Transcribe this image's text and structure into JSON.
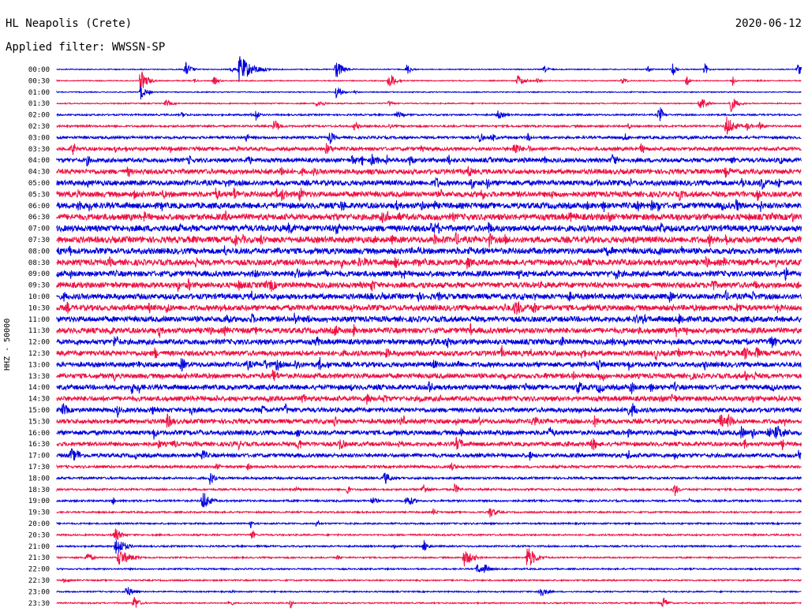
{
  "header": {
    "station": "HL Neapolis (Crete)",
    "filter": "Applied filter: WWSSN-SP",
    "date": "2020-06-12",
    "channel_label": "HHZ - 50000"
  },
  "chart_data": {
    "type": "line",
    "title": "HL Neapolis (Crete)",
    "subtitle": "Applied filter: WWSSN-SP",
    "date": "2020-06-12",
    "ylabel": "HHZ - 50000",
    "row_labels": [
      "00:00",
      "00:30",
      "01:00",
      "01:30",
      "02:00",
      "02:30",
      "03:00",
      "03:30",
      "04:00",
      "04:30",
      "05:00",
      "05:30",
      "06:00",
      "06:30",
      "07:00",
      "07:30",
      "08:00",
      "08:30",
      "09:00",
      "09:30",
      "10:00",
      "10:30",
      "11:00",
      "11:30",
      "12:00",
      "12:30",
      "13:00",
      "13:30",
      "14:00",
      "14:30",
      "15:00",
      "15:30",
      "16:00",
      "16:30",
      "17:00",
      "17:30",
      "18:00",
      "18:30",
      "19:00",
      "19:30",
      "20:00",
      "20:30",
      "21:00",
      "21:30",
      "22:00",
      "22:30",
      "23:00",
      "23:30"
    ],
    "row_colors": [
      "#0000dd",
      "#ee1144"
    ],
    "row_noise": [
      0.6,
      0.6,
      0.6,
      0.7,
      1.0,
      1.2,
      1.6,
      2.2,
      2.6,
      3.0,
      3.2,
      3.4,
      3.6,
      3.8,
      3.8,
      3.8,
      3.6,
      3.6,
      3.4,
      3.4,
      3.4,
      3.4,
      3.4,
      3.4,
      3.2,
      3.2,
      3.0,
      3.0,
      3.0,
      3.0,
      2.8,
      2.8,
      2.8,
      2.6,
      2.4,
      1.6,
      1.4,
      1.2,
      1.2,
      1.0,
      1.0,
      1.0,
      1.0,
      0.9,
      0.9,
      0.9,
      0.8,
      0.8
    ],
    "row_events": [
      8,
      8,
      2,
      3,
      8,
      6,
      10,
      16,
      18,
      20,
      20,
      22,
      24,
      24,
      26,
      26,
      24,
      24,
      22,
      22,
      22,
      22,
      22,
      22,
      20,
      20,
      20,
      20,
      20,
      20,
      18,
      18,
      18,
      18,
      16,
      4,
      3,
      4,
      3,
      2,
      2,
      2,
      2,
      2,
      2,
      2,
      2,
      2
    ],
    "events": [
      {
        "row": 0,
        "x": 303,
        "amp": 18,
        "w": 16
      },
      {
        "row": 0,
        "x": 425,
        "amp": 14,
        "w": 8
      },
      {
        "row": 1,
        "x": 178,
        "amp": 14,
        "w": 8
      },
      {
        "row": 1,
        "x": 656,
        "amp": 8,
        "w": 8
      },
      {
        "row": 2,
        "x": 178,
        "amp": 10,
        "w": 6
      },
      {
        "row": 2,
        "x": 426,
        "amp": 10,
        "w": 6
      },
      {
        "row": 3,
        "x": 210,
        "amp": 5,
        "w": 8
      },
      {
        "row": 3,
        "x": 402,
        "amp": 6,
        "w": 8
      },
      {
        "row": 3,
        "x": 925,
        "amp": 12,
        "w": 8
      },
      {
        "row": 5,
        "x": 920,
        "amp": 14,
        "w": 10
      },
      {
        "row": 21,
        "x": 652,
        "amp": 12,
        "w": 14
      },
      {
        "row": 32,
        "x": 983,
        "amp": 10,
        "w": 18
      },
      {
        "row": 38,
        "x": 257,
        "amp": 14,
        "w": 8
      },
      {
        "row": 38,
        "x": 515,
        "amp": 8,
        "w": 10
      },
      {
        "row": 37,
        "x": 576,
        "amp": 8,
        "w": 6
      },
      {
        "row": 41,
        "x": 145,
        "amp": 10,
        "w": 8
      },
      {
        "row": 42,
        "x": 147,
        "amp": 14,
        "w": 10
      },
      {
        "row": 43,
        "x": 150,
        "amp": 12,
        "w": 14
      },
      {
        "row": 43,
        "x": 588,
        "amp": 12,
        "w": 10
      },
      {
        "row": 43,
        "x": 668,
        "amp": 16,
        "w": 10
      },
      {
        "row": 46,
        "x": 160,
        "amp": 8,
        "w": 8
      },
      {
        "row": 47,
        "x": 170,
        "amp": 10,
        "w": 6
      },
      {
        "row": 47,
        "x": 840,
        "amp": 8,
        "w": 6
      }
    ]
  }
}
